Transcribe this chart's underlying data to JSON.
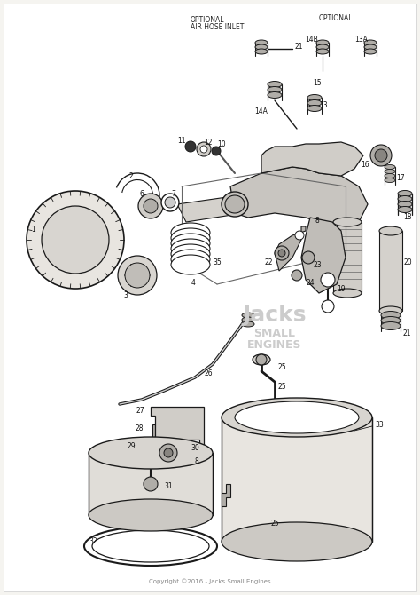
{
  "fig_width": 4.74,
  "fig_height": 6.7,
  "dpi": 100,
  "bg_color": "#f5f4f0",
  "white": "#ffffff",
  "lc": "#1a1a1a",
  "gray1": "#d0cdc8",
  "gray2": "#b0ada8",
  "gray3": "#888580",
  "copyright": "Copyright ©2016 - Jacks Small Engines",
  "watermark_lines": [
    "Jacks",
    "SMALL",
    "ENGINES"
  ]
}
